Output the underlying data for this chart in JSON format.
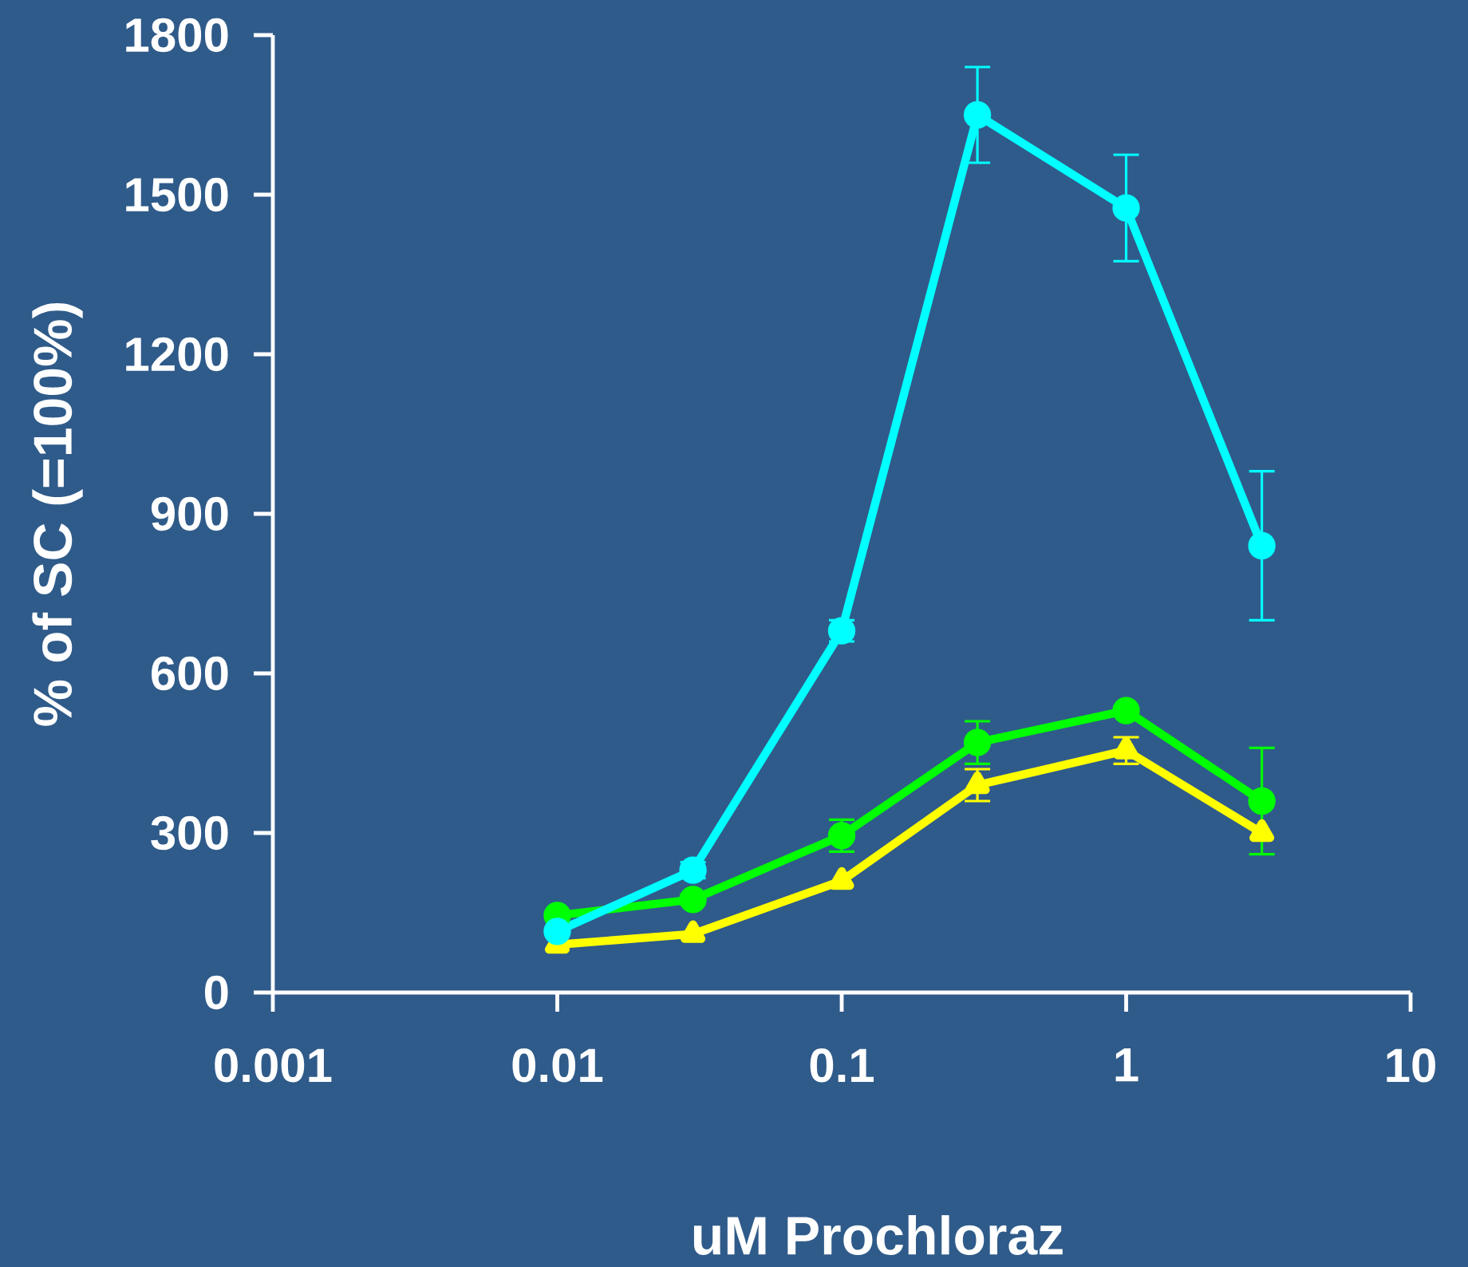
{
  "chart_data": {
    "type": "line",
    "xlabel": "uM Prochloraz",
    "ylabel": "% of SC (=100%)",
    "log": "x",
    "grid": false,
    "x": [
      0.01,
      0.03,
      0.1,
      0.3,
      1,
      3
    ],
    "xlim": [
      0.001,
      10
    ],
    "xticks": [
      0.001,
      0.01,
      0.1,
      1,
      10
    ],
    "ylim": [
      0,
      1800
    ],
    "yticks": [
      0,
      300,
      600,
      900,
      1200,
      1500,
      1800
    ],
    "series": [
      {
        "color": "#00ffff",
        "marker": "circle",
        "values": [
          115,
          230,
          680,
          1650,
          1475,
          840
        ],
        "errors": [
          null,
          15,
          20,
          90,
          100,
          140
        ]
      },
      {
        "color": "#00ff00",
        "marker": "circle",
        "values": [
          145,
          175,
          295,
          470,
          530,
          360
        ],
        "errors": [
          null,
          10,
          30,
          40,
          null,
          100
        ]
      },
      {
        "color": "#ffff00",
        "marker": "triangle",
        "values": [
          90,
          110,
          210,
          390,
          455,
          300
        ],
        "errors": [
          null,
          null,
          null,
          30,
          25,
          null
        ]
      }
    ]
  }
}
